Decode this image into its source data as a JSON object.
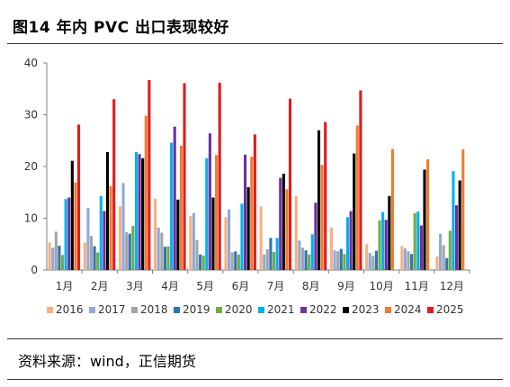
{
  "figure": {
    "title": "图14 年内 PVC 出口表现较好",
    "source": "资料来源：wind，正信期货"
  },
  "chart_data": {
    "type": "bar",
    "title": "",
    "xlabel": "",
    "ylabel": "",
    "ylim": [
      0,
      40
    ],
    "yticks": [
      0,
      10,
      20,
      30,
      40
    ],
    "grid": false,
    "legend_position": "bottom",
    "categories": [
      "1月",
      "2月",
      "3月",
      "4月",
      "5月",
      "6月",
      "7月",
      "8月",
      "9月",
      "10月",
      "11月",
      "12月"
    ],
    "series": [
      {
        "name": "2016",
        "color": "#F4B183",
        "values": [
          5.3,
          5.3,
          12.3,
          13.8,
          10.4,
          10.2,
          12.3,
          14.3,
          8.2,
          5.0,
          4.6,
          2.6
        ]
      },
      {
        "name": "2017",
        "color": "#8EA9DB",
        "values": [
          4.3,
          12.0,
          16.8,
          8.2,
          11.0,
          11.7,
          3.0,
          5.7,
          3.8,
          3.3,
          4.2,
          7.0
        ]
      },
      {
        "name": "2018",
        "color": "#A5A5A5",
        "values": [
          7.4,
          6.6,
          7.3,
          7.2,
          5.8,
          3.4,
          4.0,
          4.3,
          3.6,
          2.7,
          3.6,
          4.8
        ]
      },
      {
        "name": "2019",
        "color": "#2E75B6",
        "values": [
          4.7,
          4.6,
          7.0,
          4.5,
          3.0,
          3.6,
          6.2,
          3.8,
          4.1,
          3.7,
          3.1,
          2.3
        ]
      },
      {
        "name": "2020",
        "color": "#70AD47",
        "values": [
          2.9,
          3.4,
          8.5,
          4.6,
          2.8,
          3.0,
          3.5,
          3.0,
          3.1,
          9.6,
          11.0,
          7.6
        ]
      },
      {
        "name": "2021",
        "color": "#00B0F0",
        "values": [
          13.7,
          14.3,
          22.8,
          24.6,
          21.6,
          12.8,
          6.2,
          6.9,
          10.2,
          11.2,
          11.3,
          19.1
        ]
      },
      {
        "name": "2022",
        "color": "#7030A0",
        "values": [
          14.0,
          11.4,
          22.4,
          27.7,
          26.4,
          22.3,
          17.8,
          13.0,
          11.4,
          9.7,
          8.6,
          12.5
        ]
      },
      {
        "name": "2023",
        "color": "#000000",
        "values": [
          21.1,
          22.8,
          21.6,
          13.6,
          14.0,
          16.0,
          18.6,
          27.0,
          22.5,
          14.3,
          19.4,
          17.3
        ]
      },
      {
        "name": "2024",
        "color": "#ED7D31",
        "values": [
          16.9,
          16.2,
          29.8,
          24.0,
          22.2,
          21.9,
          15.6,
          20.3,
          27.9,
          23.4,
          21.4,
          23.3
        ]
      },
      {
        "name": "2025",
        "color": "#E31A1C",
        "values": [
          28.1,
          33.0,
          36.7,
          36.1,
          36.2,
          26.2,
          33.1,
          28.6,
          34.7,
          null,
          null,
          null
        ]
      }
    ]
  }
}
